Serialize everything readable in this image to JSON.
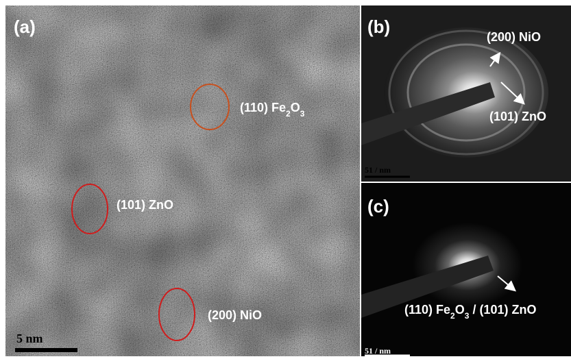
{
  "panels": [
    {
      "label": "(a)",
      "scale_bar": "5 nm",
      "annotations": [
        [
          "(110) Fe",
          "2",
          "O",
          "3"
        ],
        [
          "(101) ZnO"
        ],
        [
          "(200) NiO"
        ]
      ]
    },
    {
      "label": "(b)",
      "scale_bar": "51 / nm",
      "annotations": [
        [
          "(200) NiO"
        ],
        [
          "(101) ZnO"
        ]
      ]
    },
    {
      "label": "(c)",
      "scale_bar": "51 / nm",
      "annotations": [
        [
          "(110) Fe",
          "2",
          "O",
          "3",
          " / (101) ZnO"
        ]
      ]
    }
  ]
}
